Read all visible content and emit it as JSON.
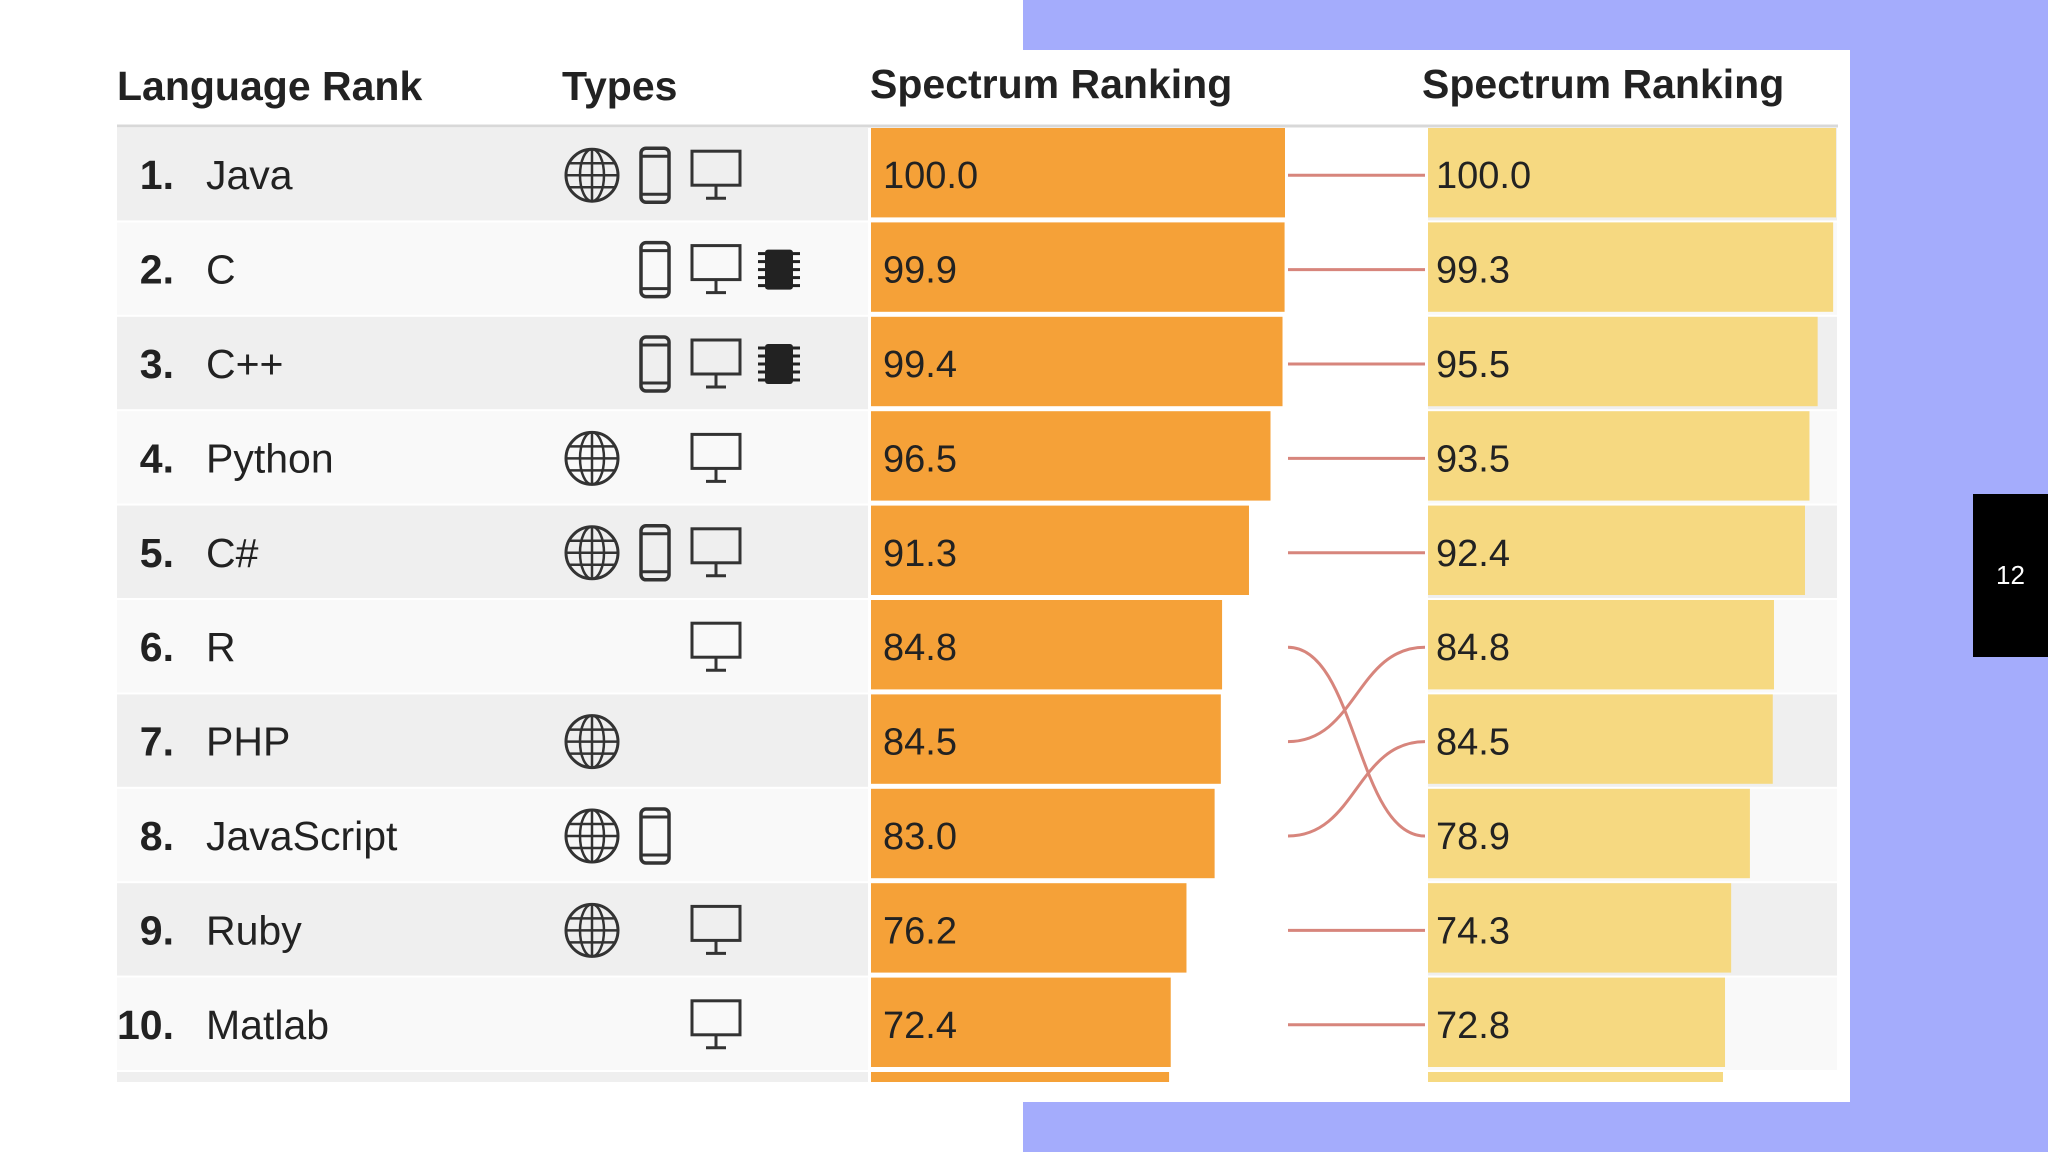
{
  "page_number": "12",
  "chart_data": {
    "type": "bar",
    "headers": {
      "rank": "Language Rank",
      "types": "Types",
      "left": "Spectrum Ranking",
      "right": "Spectrum Ranking"
    },
    "rows": [
      {
        "rank": "1.",
        "language": "Java",
        "types": [
          "web",
          "mobile",
          "desktop"
        ],
        "left": 100.0,
        "left_label": "100.0"
      },
      {
        "rank": "2.",
        "language": "C",
        "types": [
          "mobile",
          "desktop",
          "embedded"
        ],
        "left": 99.9,
        "left_label": "99.9"
      },
      {
        "rank": "3.",
        "language": "C++",
        "types": [
          "mobile",
          "desktop",
          "embedded"
        ],
        "left": 99.4,
        "left_label": "99.4"
      },
      {
        "rank": "4.",
        "language": "Python",
        "types": [
          "web",
          "desktop"
        ],
        "left": 96.5,
        "left_label": "96.5"
      },
      {
        "rank": "5.",
        "language": "C#",
        "types": [
          "web",
          "mobile",
          "desktop"
        ],
        "left": 91.3,
        "left_label": "91.3"
      },
      {
        "rank": "6.",
        "language": "R",
        "types": [
          "desktop"
        ],
        "left": 84.8,
        "left_label": "84.8"
      },
      {
        "rank": "7.",
        "language": "PHP",
        "types": [
          "web"
        ],
        "left": 84.5,
        "left_label": "84.5"
      },
      {
        "rank": "8.",
        "language": "JavaScript",
        "types": [
          "web",
          "mobile"
        ],
        "left": 83.0,
        "left_label": "83.0"
      },
      {
        "rank": "9.",
        "language": "Ruby",
        "types": [
          "web",
          "desktop"
        ],
        "left": 76.2,
        "left_label": "76.2"
      },
      {
        "rank": "10.",
        "language": "Matlab",
        "types": [
          "desktop"
        ],
        "left": 72.4,
        "left_label": "72.4"
      }
    ],
    "right_values": [
      100.0,
      99.3,
      95.5,
      93.5,
      92.4,
      84.8,
      84.5,
      78.9,
      74.3,
      72.8
    ],
    "right_labels": [
      "100.0",
      "99.3",
      "95.5",
      "93.5",
      "92.4",
      "84.8",
      "84.5",
      "78.9",
      "74.3",
      "72.8"
    ],
    "links": [
      [
        0,
        0
      ],
      [
        1,
        1
      ],
      [
        2,
        2
      ],
      [
        3,
        3
      ],
      [
        4,
        4
      ],
      [
        5,
        7
      ],
      [
        6,
        5
      ],
      [
        7,
        6
      ],
      [
        8,
        8
      ],
      [
        9,
        9
      ]
    ],
    "partial_row": {
      "left": 72.0,
      "right": 72.3
    },
    "colors": {
      "left_bar": "#f5a138",
      "right_bar": "#f6d981",
      "link": "#d7857c",
      "row_alt": "#efefef",
      "row_plain": "#f9f9f9"
    }
  }
}
